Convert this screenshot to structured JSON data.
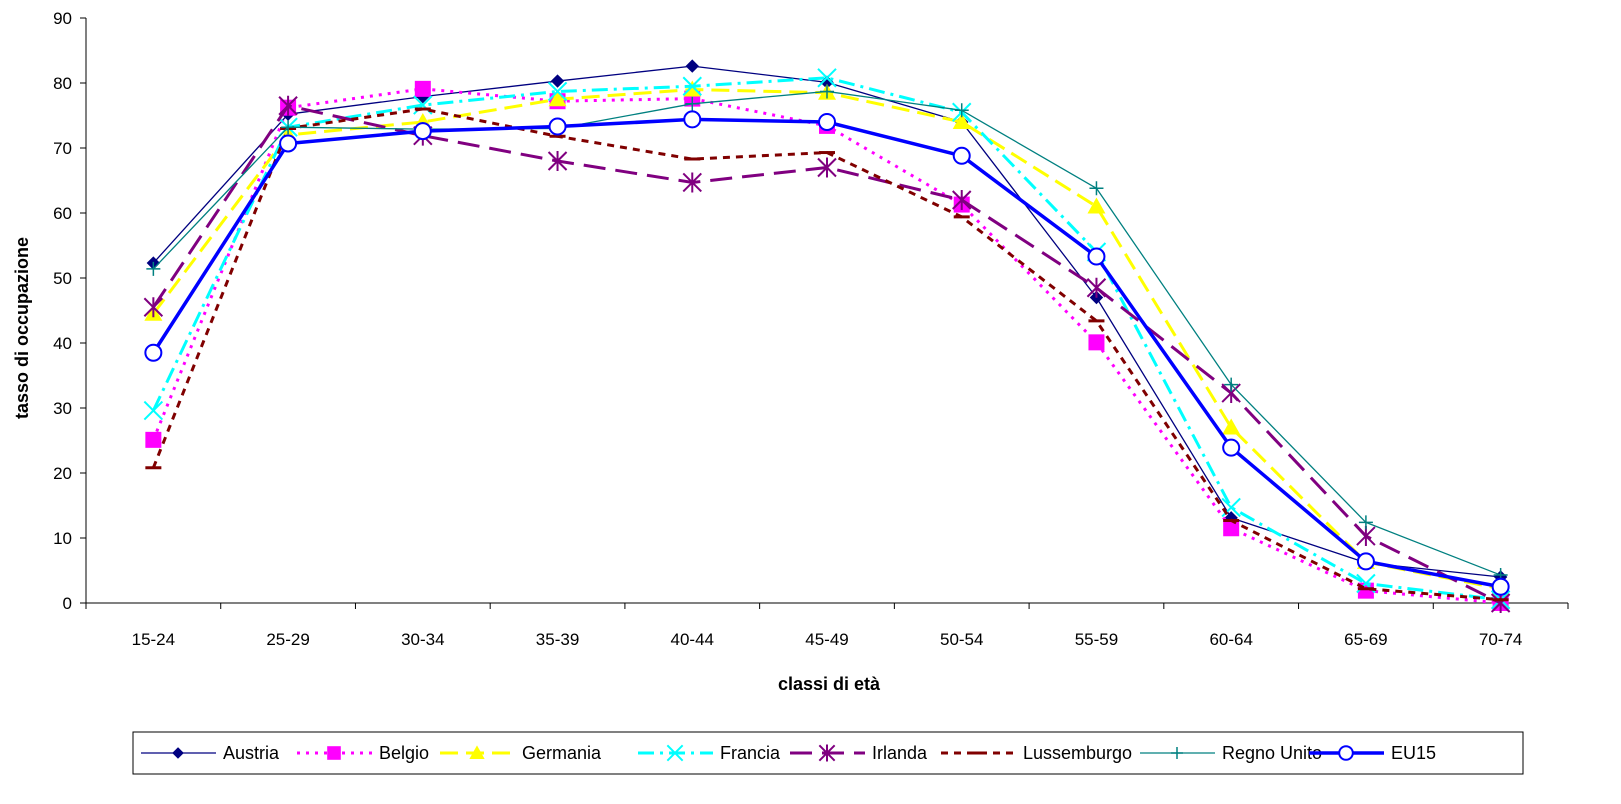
{
  "chart_data": {
    "type": "line",
    "title": "",
    "xlabel": "classi di età",
    "ylabel": "tasso di occupazione",
    "ylim": [
      0,
      90
    ],
    "yticks": [
      0,
      10,
      20,
      30,
      40,
      50,
      60,
      70,
      80,
      90
    ],
    "grid": false,
    "legend_position": "bottom",
    "categories": [
      "15-24",
      "25-29",
      "30-34",
      "35-39",
      "40-44",
      "45-49",
      "50-54",
      "55-59",
      "60-64",
      "65-69",
      "70-74"
    ],
    "series": [
      {
        "name": "Austria",
        "color": "#000080",
        "dash": "solid",
        "width": 1.3,
        "marker": "diamond",
        "values": [
          52.3,
          75.2,
          77.9,
          80.3,
          82.6,
          80.1,
          74.0,
          47.0,
          13.1,
          6.2,
          4.0
        ]
      },
      {
        "name": "Belgio",
        "color": "#ff00ff",
        "dash": "dot",
        "width": 3,
        "marker": "square",
        "values": [
          25.1,
          76.2,
          79.1,
          77.2,
          77.6,
          73.4,
          61.3,
          40.1,
          11.5,
          1.9,
          0.0
        ]
      },
      {
        "name": "Germania",
        "color": "#ffff00",
        "dash": "dash",
        "width": 3,
        "marker": "triangle",
        "values": [
          44.5,
          72.0,
          74.0,
          77.5,
          79.0,
          78.5,
          74.0,
          61.0,
          27.0,
          6.3,
          2.2
        ]
      },
      {
        "name": "Francia",
        "color": "#00ffff",
        "dash": "dashdot",
        "width": 3,
        "marker": "x",
        "values": [
          29.6,
          73.2,
          76.6,
          78.7,
          79.5,
          80.8,
          75.5,
          54.0,
          14.7,
          3.0,
          0.5
        ]
      },
      {
        "name": "Irlanda",
        "color": "#800080",
        "dash": "longdash",
        "width": 3,
        "marker": "star",
        "values": [
          45.5,
          76.5,
          71.9,
          68.0,
          64.7,
          67.0,
          62.0,
          48.5,
          32.3,
          10.3,
          0.0
        ]
      },
      {
        "name": "Lussemburgo",
        "color": "#800000",
        "dash": "shortdash",
        "width": 3,
        "marker": "dash",
        "values": [
          20.8,
          73.0,
          76.0,
          71.8,
          68.3,
          69.3,
          59.4,
          43.4,
          12.7,
          2.2,
          0.5
        ]
      },
      {
        "name": "Regno Unito",
        "color": "#008080",
        "dash": "solid",
        "width": 1.3,
        "marker": "plus",
        "values": [
          51.4,
          73.2,
          72.9,
          73.0,
          76.8,
          78.7,
          75.8,
          63.8,
          33.6,
          12.4,
          4.3
        ]
      },
      {
        "name": "EU15",
        "color": "#0000ff",
        "dash": "solid",
        "width": 3.5,
        "marker": "circle",
        "values": [
          38.5,
          70.7,
          72.6,
          73.3,
          74.4,
          74.0,
          68.8,
          53.3,
          23.9,
          6.4,
          2.5
        ]
      }
    ]
  }
}
